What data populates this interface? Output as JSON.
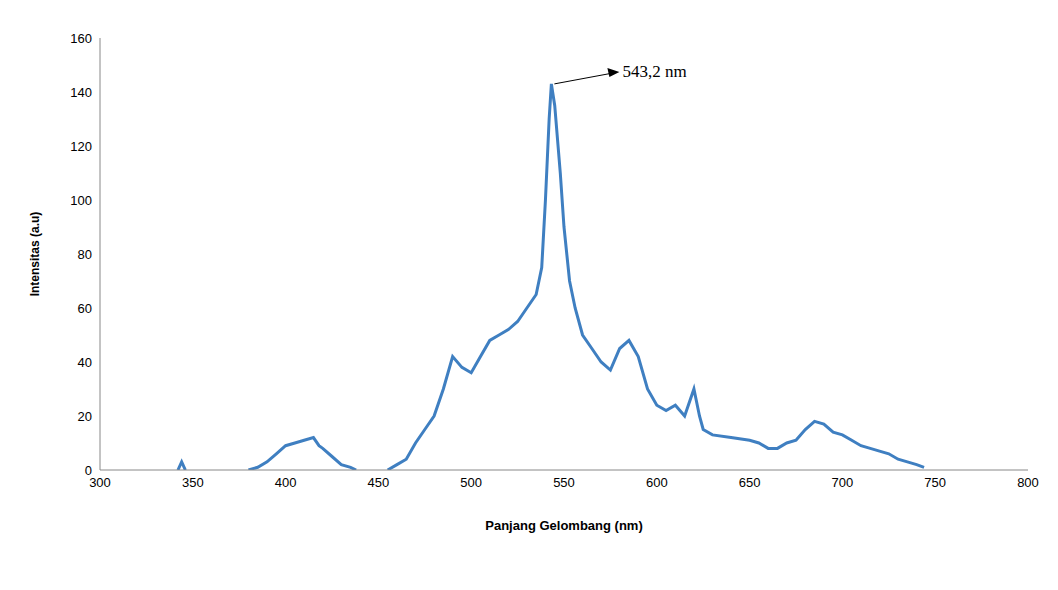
{
  "chart_data": {
    "type": "line",
    "xlabel": "Panjang Gelombang (nm)",
    "ylabel": "Intensitas (a.u)",
    "color": "#3f7fc1",
    "grid": false,
    "xlim": [
      300,
      800
    ],
    "xticks": [
      300,
      350,
      400,
      450,
      500,
      550,
      600,
      650,
      700,
      750,
      800
    ],
    "ylim": [
      0,
      160
    ],
    "yticks": [
      0,
      20,
      40,
      60,
      80,
      100,
      120,
      140,
      160
    ],
    "x": [
      342,
      344,
      346,
      360,
      380,
      385,
      390,
      395,
      400,
      405,
      410,
      415,
      418,
      420,
      425,
      430,
      435,
      438,
      440,
      442,
      448,
      455,
      460,
      465,
      470,
      475,
      480,
      485,
      490,
      495,
      500,
      505,
      510,
      515,
      520,
      525,
      530,
      535,
      538,
      540,
      542,
      543.2,
      545,
      548,
      550,
      553,
      556,
      560,
      565,
      570,
      575,
      580,
      585,
      590,
      595,
      600,
      605,
      610,
      615,
      620,
      623,
      625,
      630,
      640,
      650,
      655,
      660,
      665,
      670,
      675,
      680,
      685,
      690,
      695,
      700,
      705,
      710,
      715,
      720,
      725,
      730,
      735,
      740,
      744
    ],
    "values": [
      0,
      3,
      0,
      null,
      0,
      1,
      3,
      6,
      9,
      10,
      11,
      12,
      9,
      8,
      5,
      2,
      1,
      0,
      null,
      1,
      null,
      0,
      2,
      4,
      10,
      15,
      20,
      30,
      42,
      38,
      36,
      42,
      48,
      50,
      52,
      55,
      60,
      65,
      75,
      100,
      130,
      143,
      135,
      110,
      90,
      70,
      60,
      50,
      45,
      40,
      37,
      45,
      48,
      42,
      30,
      24,
      22,
      24,
      20,
      30,
      20,
      15,
      13,
      12,
      11,
      10,
      8,
      8,
      10,
      11,
      15,
      18,
      17,
      14,
      13,
      11,
      9,
      8,
      7,
      6,
      4,
      3,
      2,
      1
    ],
    "annotations": [
      {
        "text": "543,2 nm",
        "x": 543.2,
        "y": 143
      }
    ]
  }
}
